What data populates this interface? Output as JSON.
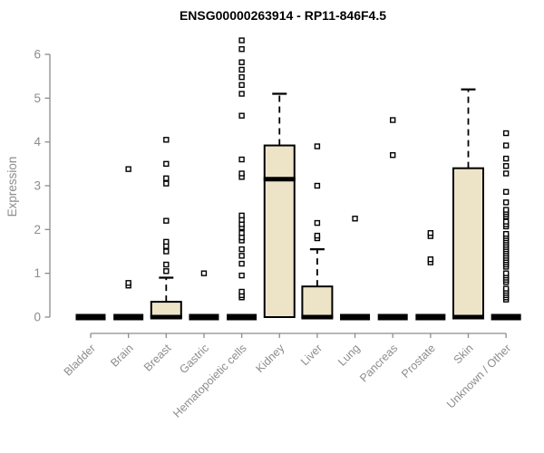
{
  "title": "ENSG00000263914 - RP11-846F4.5",
  "chart_data": {
    "type": "boxplot",
    "title": "ENSG00000263914 - RP11-846F4.5",
    "ylabel": "Expression",
    "xlabel": "",
    "ylim": [
      0,
      6.4
    ],
    "yticks": [
      0,
      1,
      2,
      3,
      4,
      5,
      6
    ],
    "grid": false,
    "legend": "none",
    "box_fill": "#EDE4C8",
    "box_stroke": "#000000",
    "axis_text_color": "#8C8C8C",
    "categories": [
      "Bladder",
      "Brain",
      "Breast",
      "Gastric",
      "Hematopoietic cells",
      "Kidney",
      "Liver",
      "Lung",
      "Pancreas",
      "Prostate",
      "Skin",
      "Unknown / Other"
    ],
    "series": [
      {
        "label": "Bladder",
        "q1": 0,
        "median": 0,
        "q3": 0,
        "whisker_low": 0,
        "whisker_high": 0,
        "outliers": []
      },
      {
        "label": "Brain",
        "q1": 0,
        "median": 0,
        "q3": 0,
        "whisker_low": 0,
        "whisker_high": 0,
        "outliers": [
          0.72,
          0.78,
          3.38
        ]
      },
      {
        "label": "Breast",
        "q1": 0,
        "median": 0,
        "q3": 0.35,
        "whisker_low": 0,
        "whisker_high": 0.9,
        "outliers": [
          1.05,
          1.2,
          1.5,
          1.62,
          1.72,
          2.2,
          3.05,
          3.17,
          3.5,
          4.05
        ]
      },
      {
        "label": "Gastric",
        "q1": 0,
        "median": 0,
        "q3": 0,
        "whisker_low": 0,
        "whisker_high": 0,
        "outliers": [
          1.0
        ]
      },
      {
        "label": "Hematopoietic cells",
        "q1": 0,
        "median": 0,
        "q3": 0,
        "whisker_low": 0,
        "whisker_high": 0,
        "outliers": [
          0.45,
          0.5,
          0.58,
          0.95,
          1.22,
          1.4,
          1.55,
          1.75,
          1.82,
          1.92,
          2.05,
          2.12,
          2.22,
          2.32,
          3.2,
          3.28,
          3.6,
          4.6,
          5.1,
          5.3,
          5.48,
          5.65,
          5.82,
          6.12,
          6.32
        ]
      },
      {
        "label": "Kidney",
        "q1": 0,
        "median": 3.15,
        "q3": 3.92,
        "whisker_low": 0,
        "whisker_high": 5.1,
        "outliers": []
      },
      {
        "label": "Liver",
        "q1": 0,
        "median": 0,
        "q3": 0.7,
        "whisker_low": 0,
        "whisker_high": 1.55,
        "outliers": [
          1.8,
          1.86,
          2.15,
          3.0,
          3.9
        ]
      },
      {
        "label": "Lung",
        "q1": 0,
        "median": 0,
        "q3": 0,
        "whisker_low": 0,
        "whisker_high": 0,
        "outliers": [
          2.25
        ]
      },
      {
        "label": "Pancreas",
        "q1": 0,
        "median": 0,
        "q3": 0,
        "whisker_low": 0,
        "whisker_high": 0,
        "outliers": [
          3.7,
          4.5
        ]
      },
      {
        "label": "Prostate",
        "q1": 0,
        "median": 0,
        "q3": 0,
        "whisker_low": 0,
        "whisker_high": 0,
        "outliers": [
          1.25,
          1.32,
          1.85,
          1.92
        ]
      },
      {
        "label": "Skin",
        "q1": 0,
        "median": 0,
        "q3": 3.4,
        "whisker_low": 0,
        "whisker_high": 5.2,
        "outliers": []
      },
      {
        "label": "Unknown / Other",
        "q1": 0,
        "median": 0,
        "q3": 0,
        "whisker_low": 0,
        "whisker_high": 0,
        "outliers": [
          0.4,
          0.45,
          0.5,
          0.55,
          0.6,
          0.65,
          0.8,
          0.85,
          0.9,
          0.95,
          1.0,
          1.15,
          1.2,
          1.25,
          1.3,
          1.35,
          1.4,
          1.45,
          1.5,
          1.55,
          1.6,
          1.65,
          1.7,
          1.75,
          1.8,
          1.85,
          1.9,
          2.07,
          2.12,
          2.18,
          2.3,
          2.35,
          2.4,
          2.45,
          2.62,
          2.86,
          3.28,
          3.45,
          3.62,
          3.92,
          4.2
        ]
      }
    ]
  }
}
